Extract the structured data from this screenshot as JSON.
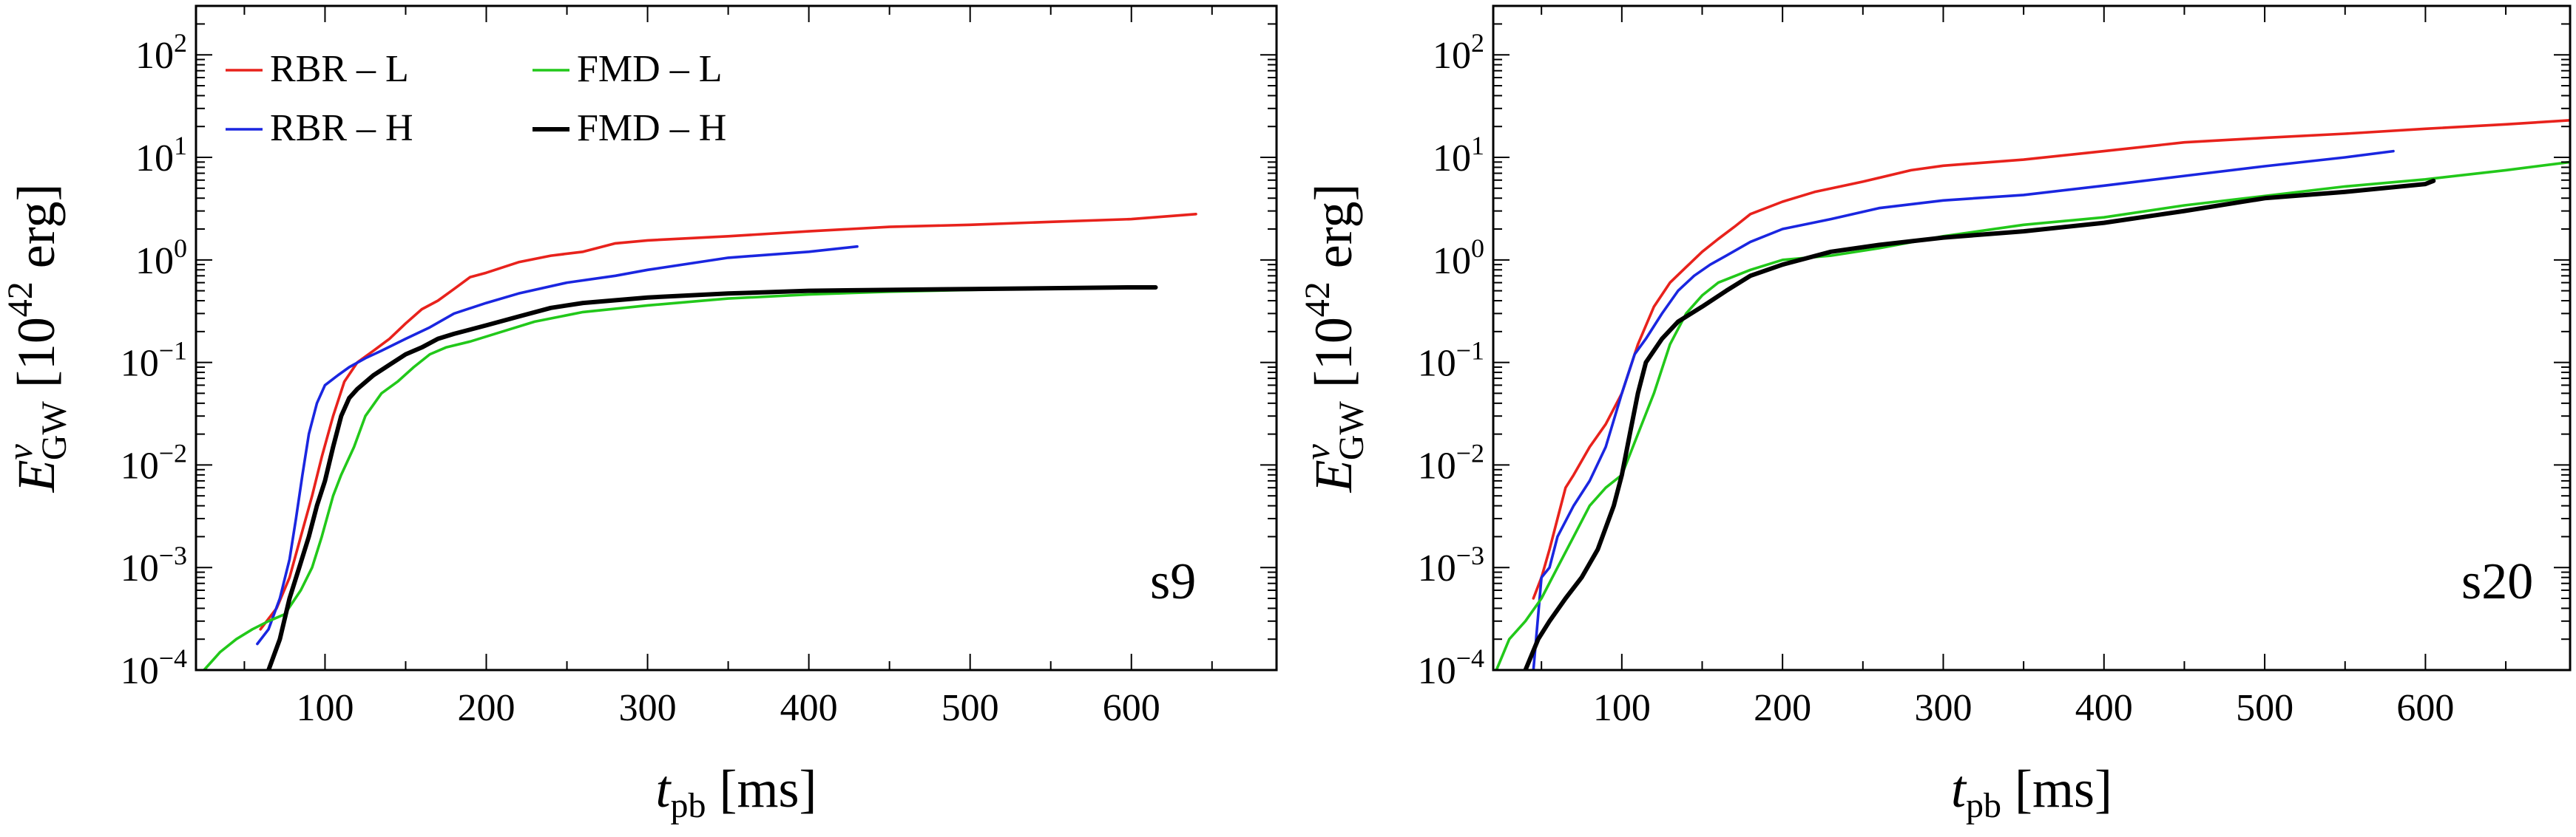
{
  "chart_data": [
    {
      "type": "line",
      "panel_label": "s9",
      "xlabel": {
        "var": "t",
        "sub": "pb",
        "unit": " [ms]"
      },
      "ylabel": {
        "var": "E",
        "sup": "ν",
        "sub": "GW",
        "unit_open": " [10",
        "unit_exp": "42",
        "unit_close": " erg]"
      },
      "yscale": "log",
      "xlim": [
        20,
        690
      ],
      "ylim": [
        0.0001,
        300
      ],
      "xticks": [
        100,
        200,
        300,
        400,
        500,
        600
      ],
      "xtick_labels": [
        "100",
        "200",
        "300",
        "400",
        "500",
        "600"
      ],
      "yticks": [
        {
          "value": 0.0001,
          "base": "10",
          "exp": "−4"
        },
        {
          "value": 0.001,
          "base": "10",
          "exp": "−3"
        },
        {
          "value": 0.01,
          "base": "10",
          "exp": "−2"
        },
        {
          "value": 0.1,
          "base": "10",
          "exp": "−1"
        },
        {
          "value": 1,
          "base": "10",
          "exp": "0"
        },
        {
          "value": 10,
          "base": "10",
          "exp": "1"
        },
        {
          "value": 100,
          "base": "10",
          "exp": "2"
        }
      ],
      "legend": {
        "location": "upper-left",
        "columns": 2
      },
      "series": [
        {
          "name": "RBR – L",
          "color": "#e8221c",
          "width": "thin",
          "x": [
            60,
            70,
            78,
            85,
            92,
            98,
            105,
            112,
            120,
            130,
            140,
            150,
            160,
            170,
            180,
            190,
            200,
            220,
            240,
            260,
            280,
            300,
            350,
            400,
            450,
            500,
            550,
            600,
            640
          ],
          "y": [
            0.00025,
            0.0004,
            0.0008,
            0.002,
            0.005,
            0.012,
            0.03,
            0.065,
            0.1,
            0.13,
            0.17,
            0.24,
            0.33,
            0.4,
            0.52,
            0.68,
            0.75,
            0.95,
            1.1,
            1.2,
            1.45,
            1.55,
            1.7,
            1.9,
            2.1,
            2.2,
            2.35,
            2.5,
            2.8
          ]
        },
        {
          "name": "RBR – H",
          "color": "#1a26e0",
          "width": "thin",
          "x": [
            58,
            65,
            72,
            78,
            82,
            86,
            90,
            95,
            100,
            108,
            115,
            125,
            135,
            150,
            165,
            180,
            200,
            220,
            250,
            280,
            300,
            350,
            400,
            430
          ],
          "y": [
            0.00018,
            0.00025,
            0.0005,
            0.0012,
            0.003,
            0.008,
            0.02,
            0.04,
            0.06,
            0.075,
            0.09,
            0.11,
            0.13,
            0.17,
            0.22,
            0.3,
            0.38,
            0.47,
            0.6,
            0.7,
            0.8,
            1.05,
            1.2,
            1.35
          ]
        },
        {
          "name": "FMD – L",
          "color": "#22c81a",
          "width": "thin",
          "x": [
            25,
            35,
            45,
            55,
            65,
            75,
            85,
            92,
            98,
            105,
            110,
            118,
            125,
            135,
            145,
            155,
            165,
            175,
            190,
            210,
            230,
            260,
            300,
            350,
            400,
            450,
            500,
            550,
            600
          ],
          "y": [
            0.0001,
            0.00015,
            0.0002,
            0.00025,
            0.0003,
            0.00035,
            0.0006,
            0.001,
            0.002,
            0.005,
            0.008,
            0.015,
            0.03,
            0.05,
            0.065,
            0.09,
            0.12,
            0.14,
            0.16,
            0.2,
            0.25,
            0.31,
            0.36,
            0.42,
            0.46,
            0.49,
            0.51,
            0.53,
            0.55
          ]
        },
        {
          "name": "FMD – H",
          "color": "#000000",
          "width": "thick",
          "x": [
            65,
            72,
            78,
            84,
            90,
            95,
            100,
            105,
            110,
            115,
            120,
            130,
            140,
            150,
            160,
            170,
            180,
            200,
            220,
            240,
            260,
            300,
            350,
            400,
            450,
            500,
            550,
            600,
            615
          ],
          "y": [
            0.0001,
            0.0002,
            0.0005,
            0.001,
            0.002,
            0.004,
            0.007,
            0.015,
            0.03,
            0.045,
            0.055,
            0.075,
            0.095,
            0.12,
            0.14,
            0.17,
            0.19,
            0.23,
            0.28,
            0.34,
            0.38,
            0.43,
            0.47,
            0.5,
            0.51,
            0.52,
            0.53,
            0.54,
            0.54
          ]
        }
      ]
    },
    {
      "type": "line",
      "panel_label": "s20",
      "xlabel": {
        "var": "t",
        "sub": "pb",
        "unit": " [ms]"
      },
      "ylabel": {
        "var": "E",
        "sup": "ν",
        "sub": "GW",
        "unit_open": " [10",
        "unit_exp": "42",
        "unit_close": " erg]"
      },
      "yscale": "log",
      "xlim": [
        20,
        690
      ],
      "ylim": [
        0.0001,
        300
      ],
      "xticks": [
        100,
        200,
        300,
        400,
        500,
        600
      ],
      "xtick_labels": [
        "100",
        "200",
        "300",
        "400",
        "500",
        "600"
      ],
      "yticks": [
        {
          "value": 0.0001,
          "base": "10",
          "exp": "−4"
        },
        {
          "value": 0.001,
          "base": "10",
          "exp": "−3"
        },
        {
          "value": 0.01,
          "base": "10",
          "exp": "−2"
        },
        {
          "value": 0.1,
          "base": "10",
          "exp": "−1"
        },
        {
          "value": 1,
          "base": "10",
          "exp": "0"
        },
        {
          "value": 10,
          "base": "10",
          "exp": "1"
        },
        {
          "value": 100,
          "base": "10",
          "exp": "2"
        }
      ],
      "series": [
        {
          "name": "RBR – L",
          "color": "#e8221c",
          "width": "thin",
          "x": [
            45,
            50,
            55,
            60,
            65,
            70,
            80,
            90,
            100,
            110,
            120,
            130,
            140,
            150,
            160,
            170,
            180,
            200,
            220,
            250,
            280,
            300,
            350,
            400,
            450,
            500,
            550,
            600,
            650,
            690
          ],
          "y": [
            0.0005,
            0.0008,
            0.0015,
            0.003,
            0.006,
            0.008,
            0.015,
            0.025,
            0.05,
            0.15,
            0.35,
            0.6,
            0.85,
            1.2,
            1.6,
            2.1,
            2.8,
            3.7,
            4.6,
            5.8,
            7.5,
            8.3,
            9.5,
            11.5,
            14,
            15.5,
            17,
            19,
            21,
            23
          ]
        },
        {
          "name": "RBR – H",
          "color": "#1a26e0",
          "width": "thin",
          "x": [
            45,
            50,
            55,
            60,
            70,
            80,
            90,
            100,
            108,
            115,
            125,
            135,
            145,
            155,
            165,
            180,
            200,
            230,
            260,
            300,
            350,
            400,
            450,
            500,
            550,
            580
          ],
          "y": [
            0.0001,
            0.0008,
            0.001,
            0.002,
            0.004,
            0.007,
            0.015,
            0.05,
            0.12,
            0.17,
            0.3,
            0.5,
            0.7,
            0.9,
            1.1,
            1.5,
            2.0,
            2.5,
            3.2,
            3.8,
            4.3,
            5.3,
            6.6,
            8.2,
            10,
            11.5
          ]
        },
        {
          "name": "FMD – L",
          "color": "#22c81a",
          "width": "thin",
          "x": [
            22,
            30,
            40,
            50,
            60,
            70,
            80,
            90,
            100,
            110,
            120,
            130,
            140,
            150,
            160,
            180,
            200,
            230,
            260,
            300,
            350,
            400,
            450,
            500,
            550,
            600,
            650,
            690
          ],
          "y": [
            0.0001,
            0.0002,
            0.0003,
            0.0005,
            0.001,
            0.002,
            0.004,
            0.006,
            0.008,
            0.02,
            0.05,
            0.15,
            0.3,
            0.45,
            0.6,
            0.8,
            1.0,
            1.1,
            1.3,
            1.7,
            2.2,
            2.6,
            3.4,
            4.2,
            5.2,
            6.1,
            7.5,
            9
          ]
        },
        {
          "name": "FMD – H",
          "color": "#000000",
          "width": "thick",
          "x": [
            40,
            48,
            55,
            65,
            75,
            85,
            95,
            100,
            105,
            110,
            115,
            125,
            135,
            150,
            165,
            180,
            200,
            230,
            260,
            300,
            350,
            400,
            450,
            500,
            550,
            600,
            605
          ],
          "y": [
            0.0001,
            0.0002,
            0.0003,
            0.0005,
            0.0008,
            0.0015,
            0.004,
            0.008,
            0.02,
            0.05,
            0.1,
            0.17,
            0.25,
            0.35,
            0.5,
            0.7,
            0.9,
            1.2,
            1.4,
            1.65,
            1.9,
            2.3,
            3.0,
            4.0,
            4.6,
            5.5,
            5.9
          ]
        }
      ]
    }
  ]
}
